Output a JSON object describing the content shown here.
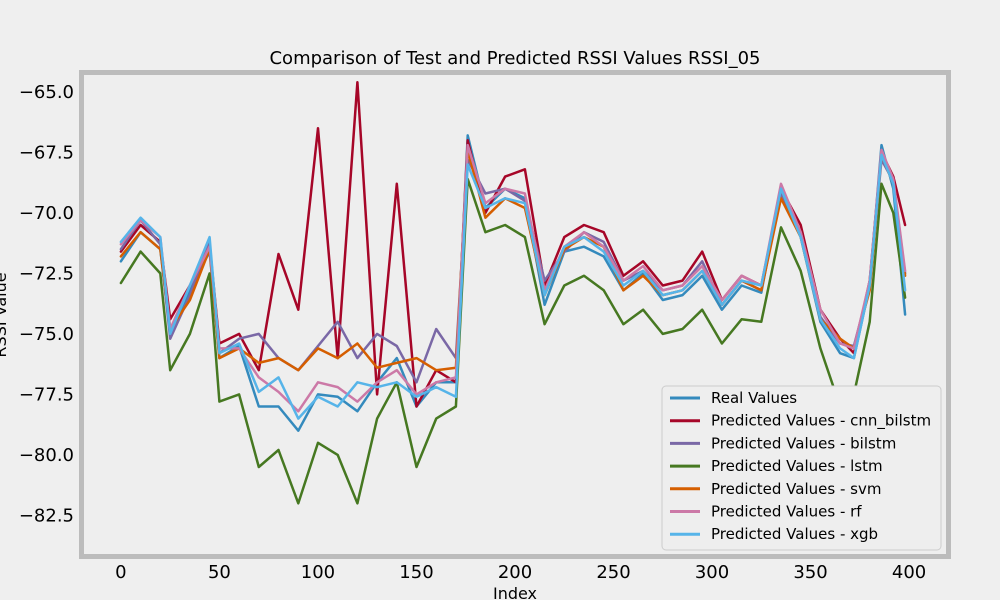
{
  "chart_data": {
    "type": "line",
    "title": "Comparison of Test and Predicted RSSI Values RSSI_05",
    "xlabel": "Index",
    "ylabel": "RSSI Value",
    "xlim": [
      -20,
      420
    ],
    "ylim": [
      -84.2,
      -64.2
    ],
    "xticks": [
      0,
      50,
      100,
      150,
      200,
      250,
      300,
      350,
      400
    ],
    "xtick_labels": [
      "0",
      "50",
      "100",
      "150",
      "200",
      "250",
      "300",
      "350",
      "400"
    ],
    "yticks": [
      -82.5,
      -80.0,
      -77.5,
      -75.0,
      -72.5,
      -70.0,
      -67.5,
      -65.0
    ],
    "ytick_labels": [
      "−82.5",
      "−80.0",
      "−77.5",
      "−75.0",
      "−72.5",
      "−70.0",
      "−67.5",
      "−65.0"
    ],
    "grid": false,
    "legend_position": "bottom-right",
    "x": [
      0,
      10,
      20,
      25,
      35,
      45,
      50,
      60,
      70,
      80,
      90,
      100,
      110,
      120,
      130,
      140,
      150,
      160,
      170,
      176,
      185,
      195,
      205,
      215,
      225,
      235,
      245,
      255,
      265,
      275,
      285,
      295,
      305,
      315,
      325,
      335,
      345,
      355,
      365,
      372,
      380,
      386,
      392,
      398
    ],
    "series": [
      {
        "name": "Real Values",
        "color": "#348abd",
        "values": [
          -72.0,
          -70.8,
          -71.5,
          -75.0,
          -73.2,
          -71.6,
          -76.0,
          -75.5,
          -78.0,
          -78.0,
          -79.0,
          -77.5,
          -77.6,
          -78.2,
          -77.0,
          -76.0,
          -78.0,
          -77.0,
          -77.0,
          -66.8,
          -69.8,
          -69.0,
          -69.4,
          -73.8,
          -71.6,
          -71.4,
          -71.8,
          -73.2,
          -72.5,
          -73.6,
          -73.4,
          -72.6,
          -74.0,
          -73.0,
          -73.3,
          -69.0,
          -71.0,
          -74.5,
          -75.8,
          -76.0,
          -73.0,
          -67.2,
          -69.0,
          -74.2
        ]
      },
      {
        "name": "Predicted Values - cnn_bilstm",
        "color": "#a60628",
        "values": [
          -71.6,
          -70.5,
          -71.2,
          -74.4,
          -73.0,
          -71.3,
          -75.4,
          -75.0,
          -76.5,
          -71.7,
          -74.0,
          -66.5,
          -76.0,
          -64.6,
          -77.5,
          -68.8,
          -78.0,
          -76.5,
          -77.0,
          -67.0,
          -70.0,
          -68.5,
          -68.2,
          -73.0,
          -71.0,
          -70.5,
          -70.8,
          -72.6,
          -72.0,
          -73.0,
          -72.8,
          -71.6,
          -73.6,
          -72.6,
          -73.0,
          -69.0,
          -70.5,
          -74.0,
          -75.2,
          -75.8,
          -72.8,
          -67.5,
          -68.5,
          -70.5
        ]
      },
      {
        "name": "Predicted Values - bilstm",
        "color": "#7a68a6",
        "values": [
          -71.5,
          -70.3,
          -71.3,
          -75.2,
          -73.4,
          -71.2,
          -75.8,
          -75.2,
          -75.0,
          -76.0,
          -76.5,
          -75.5,
          -74.5,
          -76.0,
          -75.0,
          -75.5,
          -77.0,
          -74.8,
          -76.0,
          -67.8,
          -69.2,
          -69.0,
          -69.5,
          -72.8,
          -71.6,
          -70.8,
          -71.2,
          -72.8,
          -72.4,
          -73.2,
          -73.0,
          -72.0,
          -73.8,
          -72.8,
          -73.2,
          -69.2,
          -70.8,
          -74.3,
          -75.4,
          -75.5,
          -73.0,
          -67.8,
          -68.7,
          -72.5
        ]
      },
      {
        "name": "Predicted Values - lstm",
        "color": "#467821",
        "values": [
          -72.9,
          -71.6,
          -72.5,
          -76.5,
          -75.0,
          -72.5,
          -77.8,
          -77.5,
          -80.5,
          -79.8,
          -82.0,
          -79.5,
          -80.0,
          -82.0,
          -78.5,
          -77.0,
          -80.5,
          -78.5,
          -78.0,
          -68.6,
          -70.8,
          -70.5,
          -71.0,
          -74.6,
          -73.0,
          -72.6,
          -73.2,
          -74.6,
          -74.0,
          -75.0,
          -74.8,
          -74.0,
          -75.4,
          -74.4,
          -74.5,
          -70.6,
          -72.4,
          -75.6,
          -78.0,
          -77.5,
          -74.5,
          -68.8,
          -70.0,
          -73.5
        ]
      },
      {
        "name": "Predicted Values - svm",
        "color": "#d55e00",
        "values": [
          -71.8,
          -70.8,
          -71.5,
          -74.8,
          -73.6,
          -71.5,
          -76.0,
          -75.6,
          -76.2,
          -76.0,
          -76.5,
          -75.6,
          -76.0,
          -75.4,
          -76.4,
          -76.2,
          -76.0,
          -76.5,
          -76.4,
          -67.4,
          -70.2,
          -69.4,
          -69.8,
          -73.4,
          -71.5,
          -71.0,
          -71.4,
          -73.2,
          -72.6,
          -73.4,
          -73.2,
          -72.4,
          -73.8,
          -72.8,
          -73.2,
          -69.4,
          -71.0,
          -74.4,
          -75.2,
          -75.6,
          -73.2,
          -67.6,
          -68.8,
          -72.6
        ]
      },
      {
        "name": "Predicted Values - rf",
        "color": "#cc79a7",
        "values": [
          -71.3,
          -70.3,
          -71.0,
          -74.8,
          -73.0,
          -71.4,
          -75.6,
          -75.6,
          -76.8,
          -77.4,
          -78.2,
          -77.0,
          -77.2,
          -77.8,
          -77.0,
          -76.5,
          -77.5,
          -77.0,
          -76.8,
          -67.2,
          -69.6,
          -69.0,
          -69.2,
          -73.2,
          -71.4,
          -70.8,
          -71.4,
          -72.8,
          -72.2,
          -73.2,
          -73.0,
          -72.2,
          -73.6,
          -72.6,
          -73.0,
          -68.8,
          -70.8,
          -74.0,
          -75.4,
          -75.6,
          -72.8,
          -67.4,
          -68.6,
          -72.4
        ]
      },
      {
        "name": "Predicted Values - xgb",
        "color": "#56b4e9",
        "values": [
          -71.2,
          -70.2,
          -71.0,
          -75.0,
          -73.0,
          -71.0,
          -75.8,
          -75.4,
          -77.4,
          -76.8,
          -78.5,
          -77.6,
          -78.0,
          -77.0,
          -77.2,
          -77.0,
          -77.6,
          -77.2,
          -77.6,
          -68.0,
          -69.8,
          -69.4,
          -69.6,
          -73.4,
          -71.4,
          -71.0,
          -71.6,
          -73.0,
          -72.4,
          -73.4,
          -73.2,
          -72.4,
          -73.8,
          -72.8,
          -73.0,
          -69.0,
          -71.0,
          -74.4,
          -75.6,
          -76.0,
          -73.0,
          -67.6,
          -68.8,
          -73.2
        ]
      }
    ]
  }
}
